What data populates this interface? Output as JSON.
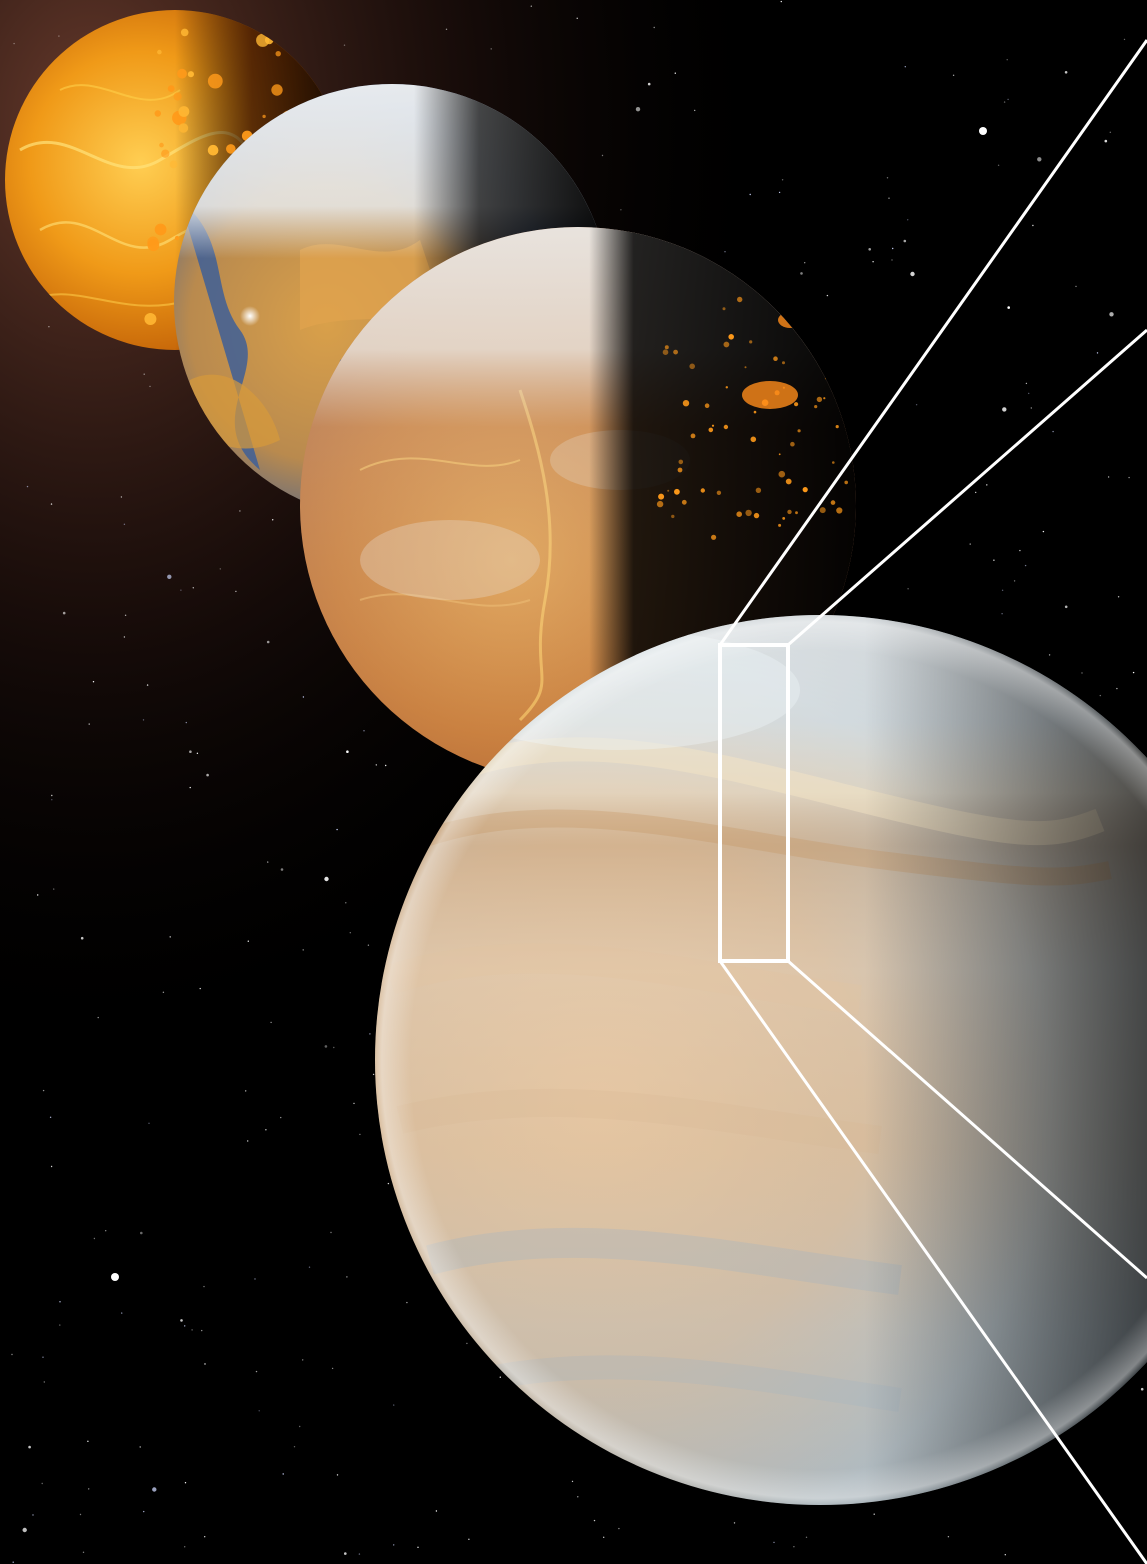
{
  "image": {
    "subject": "four-planets-evolution-sequence",
    "planets": [
      {
        "name": "molten-planet",
        "palette": [
          "#f2a01a",
          "#c8650a",
          "#ffd25a"
        ]
      },
      {
        "name": "ocean-planet",
        "palette": [
          "#3d5f9a",
          "#d79a3a",
          "#eef1f3"
        ]
      },
      {
        "name": "transition-planet",
        "palette": [
          "#c97a3a",
          "#e8b060",
          "#e9e2da",
          "#ff8c1a"
        ]
      },
      {
        "name": "cloud-covered-planet",
        "palette": [
          "#e6ecef",
          "#dca56e",
          "#9fb4c3",
          "#c6cdd0"
        ]
      }
    ],
    "colors": {
      "space": "#000000",
      "nebula": "#6b3a2a",
      "callout_lines": "#ffffff"
    }
  }
}
